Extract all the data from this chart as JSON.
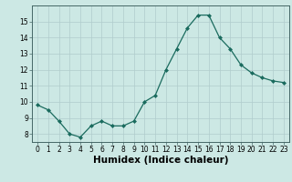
{
  "x": [
    0,
    1,
    2,
    3,
    4,
    5,
    6,
    7,
    8,
    9,
    10,
    11,
    12,
    13,
    14,
    15,
    16,
    17,
    18,
    19,
    20,
    21,
    22,
    23
  ],
  "y": [
    9.8,
    9.5,
    8.8,
    8.0,
    7.8,
    8.5,
    8.8,
    8.5,
    8.5,
    8.8,
    10.0,
    10.4,
    12.0,
    13.3,
    14.6,
    15.4,
    15.4,
    14.0,
    13.3,
    12.3,
    11.8,
    11.5,
    11.3,
    11.2
  ],
  "line_color": "#1a6b5e",
  "marker": "D",
  "marker_size": 2.0,
  "bg_color": "#cce8e4",
  "grid_color": "#b0cccc",
  "xlabel": "Humidex (Indice chaleur)",
  "ylim": [
    7.5,
    16.0
  ],
  "yticks": [
    8,
    9,
    10,
    11,
    12,
    13,
    14,
    15
  ],
  "xticks": [
    0,
    1,
    2,
    3,
    4,
    5,
    6,
    7,
    8,
    9,
    10,
    11,
    12,
    13,
    14,
    15,
    16,
    17,
    18,
    19,
    20,
    21,
    22,
    23
  ],
  "tick_label_size": 5.5,
  "xlabel_size": 7.5,
  "linewidth": 0.9
}
